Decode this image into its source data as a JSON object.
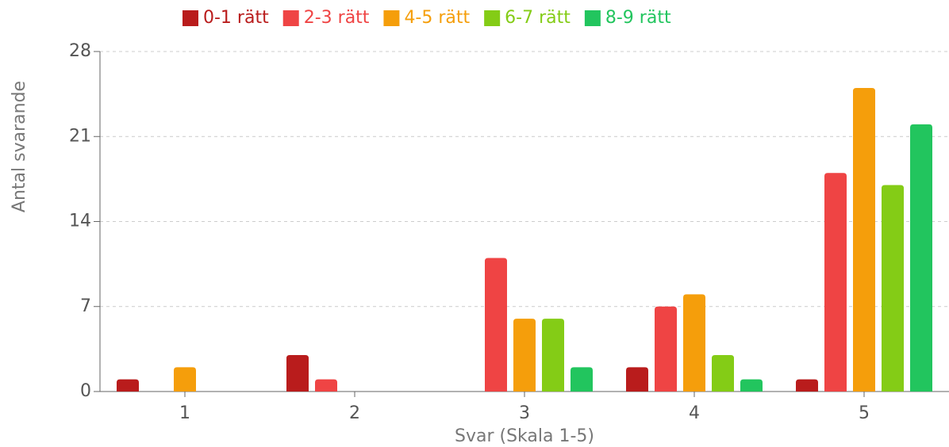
{
  "chart_data": {
    "type": "bar",
    "x_label": "Svar (Skala 1-5)",
    "y_label": "Antal svarande",
    "categories": [
      "1",
      "2",
      "3",
      "4",
      "5"
    ],
    "series": [
      {
        "name": "0-1 rätt",
        "color": "#b91c1c",
        "values": [
          1,
          3,
          0,
          2,
          1
        ]
      },
      {
        "name": "2-3 rätt",
        "color": "#ef4444",
        "values": [
          0,
          1,
          11,
          7,
          18
        ]
      },
      {
        "name": "4-5 rätt",
        "color": "#f59e0b",
        "values": [
          2,
          0,
          6,
          8,
          25
        ]
      },
      {
        "name": "6-7 rätt",
        "color": "#84cc16",
        "values": [
          0,
          0,
          6,
          3,
          17
        ]
      },
      {
        "name": "8-9 rätt",
        "color": "#22c55e",
        "values": [
          0,
          0,
          2,
          1,
          22
        ]
      }
    ],
    "ylim": [
      0,
      28
    ],
    "yticks": [
      0,
      7,
      14,
      21,
      28
    ],
    "grid": true,
    "legend": "top"
  }
}
